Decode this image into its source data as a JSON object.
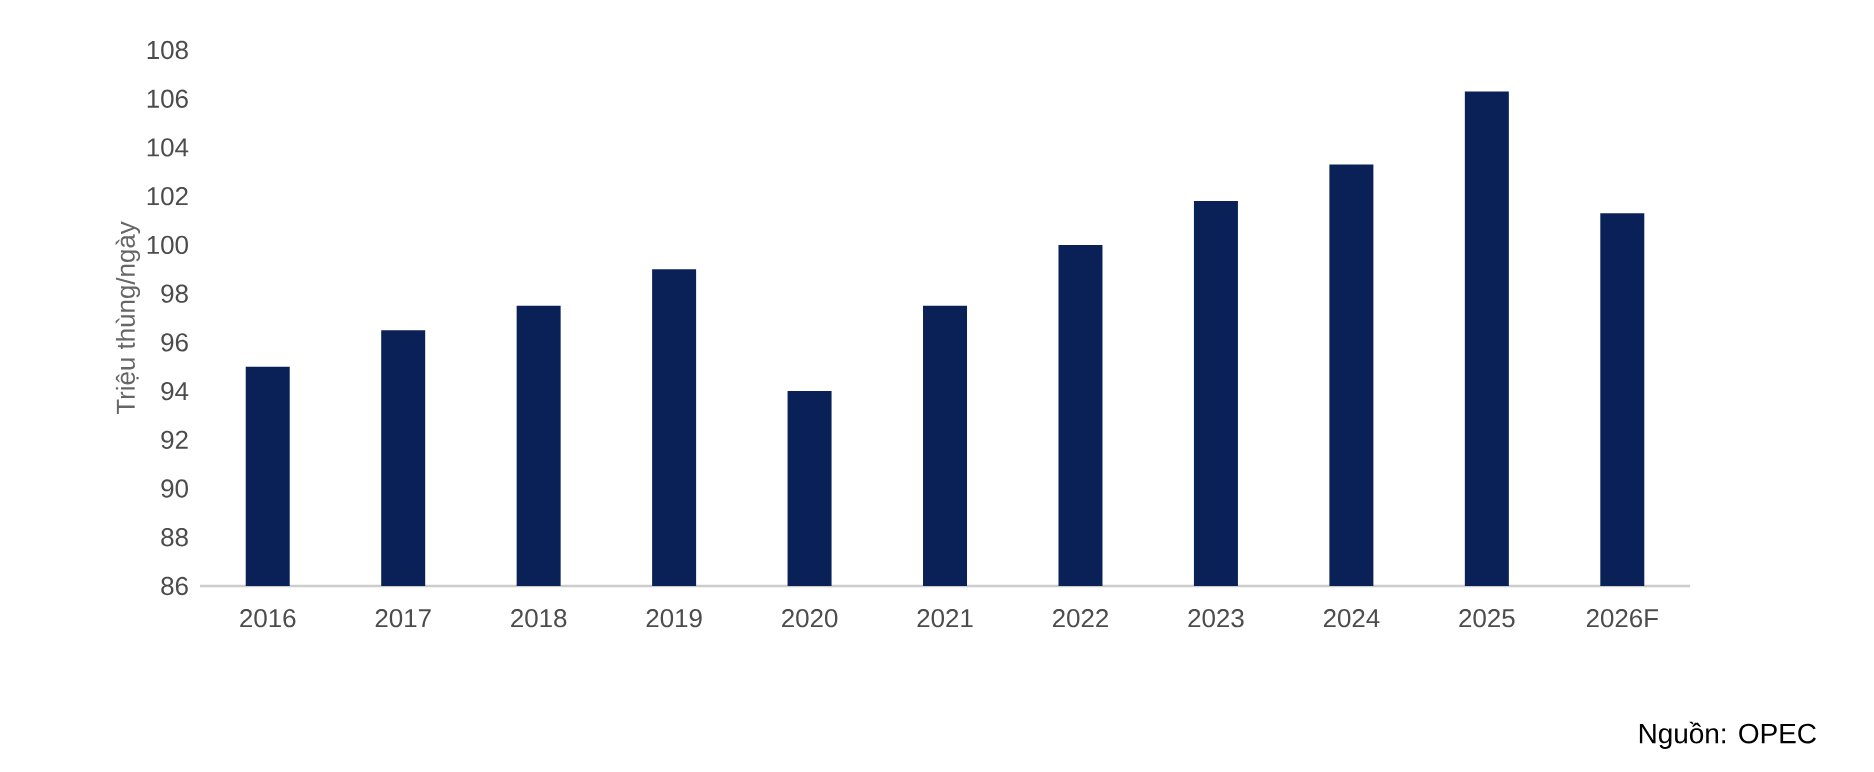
{
  "chart_data": {
    "type": "bar",
    "ylabel": "Triệu thùng/ngày",
    "categories": [
      "2016",
      "2017",
      "2018",
      "2019",
      "2020",
      "2021",
      "2022",
      "2023",
      "2024",
      "2025",
      "2026F"
    ],
    "values": [
      95.0,
      96.5,
      97.5,
      99.0,
      94.0,
      97.5,
      100.0,
      101.8,
      103.3,
      106.3,
      101.3
    ],
    "colors": [
      "#0a2157",
      "#0a2157",
      "#0a2157",
      "#0a2157",
      "#0a2157",
      "#0a2157",
      "#0a2157",
      "#0a2157",
      "#0a2157",
      "#0a2157",
      "#0a2157"
    ],
    "ylim": [
      86,
      108
    ],
    "yticks": [
      86,
      88,
      90,
      92,
      94,
      96,
      98,
      100,
      102,
      104,
      106,
      108
    ],
    "annotations": [
      "Nguồn: OPEC"
    ]
  }
}
